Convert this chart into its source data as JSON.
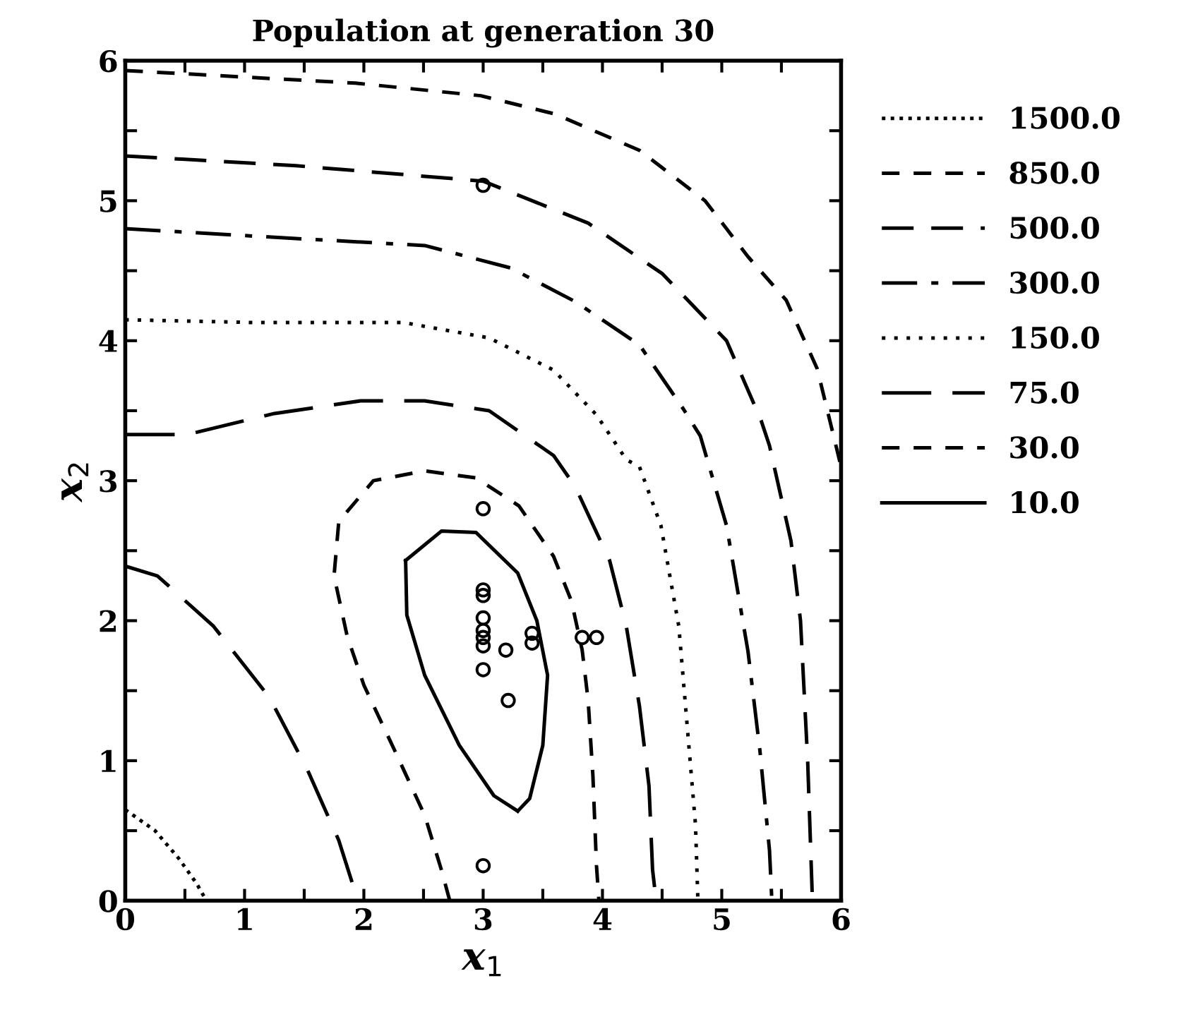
{
  "chart_data": {
    "type": "line",
    "title": "Population at generation 30",
    "xlabel": "x$_{1}$",
    "ylabel": "x$_{2}$",
    "xlim": [
      0,
      6
    ],
    "ylim": [
      0,
      6
    ],
    "xticks": [
      0,
      {
        "value": 0.5,
        "label": null
      },
      1,
      {
        "value": 1.5,
        "label": null
      },
      2,
      {
        "value": 2.5,
        "label": null
      },
      3,
      {
        "value": 3.5,
        "label": null
      },
      4,
      {
        "value": 4.5,
        "label": null
      },
      5,
      {
        "value": 5.5,
        "label": null
      },
      6
    ],
    "yticks": [
      0,
      {
        "value": 0.5,
        "label": null
      },
      1,
      {
        "value": 1.5,
        "label": null
      },
      2,
      {
        "value": 2.5,
        "label": null
      },
      3,
      {
        "value": 3.5,
        "label": null
      },
      4,
      {
        "value": 4.5,
        "label": null
      },
      5,
      {
        "value": 5.5,
        "label": null
      },
      6
    ],
    "grid": false,
    "legend": "right",
    "series": [
      {
        "name": "1500.0",
        "color": "#000000",
        "line_style": "densely dotted",
        "x": [
          0,
          0.25,
          0.45,
          0.6,
          0.68
        ],
        "values": [
          0.65,
          0.5,
          0.3,
          0.12,
          0
        ]
      },
      {
        "name": "850.0",
        "color": "#000000",
        "line_style": "dashed",
        "x": [
          0,
          1.93,
          2.98,
          3.6,
          4.31,
          4.86,
          5.22,
          5.54,
          5.8,
          6
        ],
        "values": [
          5.93,
          5.84,
          5.75,
          5.62,
          5.36,
          5.0,
          4.6,
          4.29,
          3.8,
          3.1
        ]
      },
      {
        "name": "500.0",
        "color": "#000000",
        "line_style": "long dashed",
        "x": [
          0,
          1.43,
          3.0,
          3.88,
          4.5,
          5.04,
          5.33,
          5.4,
          5.58,
          5.66,
          5.72,
          5.76
        ],
        "values": [
          5.32,
          5.25,
          5.14,
          4.84,
          4.48,
          4.0,
          3.43,
          3.25,
          2.57,
          2.0,
          1.0,
          0
        ]
      },
      {
        "name": "300.0",
        "color": "#000000",
        "line_style": "dashdot",
        "x": [
          0,
          1.43,
          2.51,
          3.23,
          3.77,
          4.31,
          4.68,
          4.82,
          5.04,
          5.22,
          5.32,
          5.4,
          5.42
        ],
        "values": [
          4.8,
          4.73,
          4.68,
          4.52,
          4.28,
          3.97,
          3.51,
          3.32,
          2.68,
          1.78,
          1.07,
          0.36,
          0
        ]
      },
      {
        "name": "150.0",
        "color": "#000000",
        "line_style": "dotted",
        "x": [
          0,
          1.06,
          2.33,
          3.05,
          3.59,
          3.95,
          4.2,
          4.31,
          4.49,
          4.64,
          4.71,
          4.78,
          4.8
        ],
        "values": [
          4.15,
          4.13,
          4.13,
          4.02,
          3.79,
          3.47,
          3.15,
          3.1,
          2.68,
          1.96,
          1.25,
          0.54,
          0
        ]
      },
      {
        "name": "75.0",
        "color": "#000000",
        "line_style": "longest dashed",
        "x": [
          0,
          0.52,
          1.25,
          1.97,
          2.51,
          3.05,
          3.59,
          3.77,
          4.06,
          4.2,
          4.31,
          4.39,
          4.42,
          4.45
        ],
        "values": [
          3.33,
          3.33,
          3.48,
          3.57,
          3.57,
          3.5,
          3.18,
          2.96,
          2.43,
          1.96,
          1.39,
          0.82,
          0.22,
          0
        ]
      },
      {
        "color": "#000000",
        "line_style": "longest dashed",
        "x": [
          0,
          0.27,
          0.74,
          1.21,
          1.53,
          1.79,
          1.95
        ],
        "values": [
          2.39,
          2.32,
          1.96,
          1.45,
          0.93,
          0.43,
          0
        ]
      },
      {
        "name": "30.0",
        "color": "#000000",
        "line_style": "dashed",
        "x": [
          2.72,
          2.65,
          2.51,
          2.26,
          2.0,
          1.86,
          1.75,
          1.79,
          2.08,
          2.51,
          2.94,
          3.3,
          3.59,
          3.74,
          3.83,
          3.88,
          3.92,
          3.95,
          3.97
        ],
        "values": [
          0,
          0.22,
          0.61,
          1.07,
          1.54,
          1.89,
          2.32,
          2.71,
          3.0,
          3.07,
          3.02,
          2.82,
          2.46,
          2.14,
          1.79,
          1.43,
          0.89,
          0.25,
          0
        ]
      },
      {
        "name": "10.0",
        "color": "#000000",
        "line_style": "solid",
        "x": [
          2.35,
          2.65,
          2.94,
          3.29,
          3.45,
          3.54,
          3.5,
          3.39,
          3.29
        ],
        "values": [
          2.43,
          2.64,
          2.63,
          2.34,
          2.0,
          1.61,
          1.11,
          0.73,
          0.64
        ]
      },
      {
        "color": "#000000",
        "line_style": "solid",
        "x": [
          3.29,
          3.09,
          2.8,
          2.51,
          2.36,
          2.35
        ],
        "values": [
          0.64,
          0.75,
          1.11,
          1.61,
          2.04,
          2.43
        ]
      },
      {
        "type": "scatter",
        "marker": "circle",
        "color": "#000000",
        "x": [
          3.0,
          3.0,
          3.0,
          3.0,
          3.0,
          3.0,
          3.0,
          3.0,
          3.0,
          3.19,
          3.21,
          3.41,
          3.41,
          3.83,
          3.95,
          3.0
        ],
        "values": [
          5.11,
          2.8,
          2.22,
          2.18,
          2.02,
          1.93,
          1.88,
          1.82,
          1.65,
          1.79,
          1.43,
          1.91,
          1.84,
          1.88,
          1.88,
          0.25
        ]
      }
    ]
  }
}
